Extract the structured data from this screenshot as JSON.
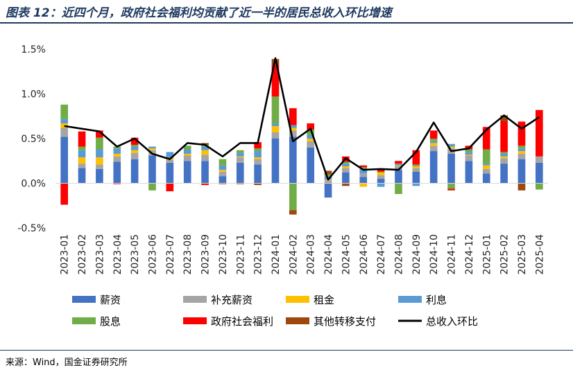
{
  "figure": {
    "title": "图表 12：近四个月，政府社会福利均贡献了近一半的居民总收入环比增速",
    "source": "来源：Wind，国金证券研究所"
  },
  "chart_data": {
    "type": "bar",
    "stacked": true,
    "categories": [
      "2023-01",
      "2023-02",
      "2023-03",
      "2023-04",
      "2023-05",
      "2023-06",
      "2023-07",
      "2023-08",
      "2023-09",
      "2023-10",
      "2023-11",
      "2023-12",
      "2024-01",
      "2024-02",
      "2024-03",
      "2024-04",
      "2024-05",
      "2024-06",
      "2024-07",
      "2024-08",
      "2024-09",
      "2024-10",
      "2024-11",
      "2024-12",
      "2025-01",
      "2025-02",
      "2025-03",
      "2025-04"
    ],
    "y_ticks": [
      "1.5%",
      "1.0%",
      "0.5%",
      "0.0%",
      "-0.5%"
    ],
    "ylim": [
      -0.5,
      1.5
    ],
    "grid": false,
    "legend_position": "bottom",
    "series": [
      {
        "name": "薪资",
        "color": "#4472c4",
        "values": [
          0.52,
          0.17,
          0.16,
          0.24,
          0.27,
          0.31,
          0.23,
          0.25,
          0.25,
          0.08,
          0.23,
          0.21,
          0.5,
          0.52,
          0.4,
          -0.16,
          0.12,
          0.07,
          0.05,
          0.15,
          0.13,
          0.36,
          0.33,
          0.25,
          0.11,
          0.22,
          0.27,
          0.23
        ]
      },
      {
        "name": "补充薪资",
        "color": "#a5a5a5",
        "values": [
          0.1,
          0.05,
          0.05,
          0.06,
          0.07,
          0.06,
          0.03,
          0.06,
          0.07,
          0.05,
          0.06,
          0.06,
          0.07,
          0.07,
          0.07,
          0.03,
          0.05,
          0.04,
          0.04,
          0.04,
          0.04,
          0.06,
          0.06,
          0.06,
          0.05,
          0.06,
          0.06,
          0.07
        ]
      },
      {
        "name": "租金",
        "color": "#ffc000",
        "values": [
          0.05,
          0.07,
          0.08,
          0.03,
          0.03,
          0.02,
          0.02,
          0.02,
          0.05,
          0.02,
          0.01,
          0.02,
          0.07,
          0.03,
          0.03,
          0.01,
          0.02,
          -0.04,
          0.03,
          0.01,
          0.02,
          0.03,
          0.02,
          0.01,
          0.04,
          0.02,
          0.03,
          0.0
        ]
      },
      {
        "name": "利息",
        "color": "#5b9bd5",
        "values": [
          0.05,
          0.08,
          0.09,
          0.06,
          0.04,
          0.02,
          0.07,
          0.05,
          0.04,
          0.05,
          0.04,
          0.07,
          0.03,
          0.03,
          0.04,
          0.04,
          0.03,
          0.05,
          -0.04,
          0.02,
          -0.03,
          0.02,
          0.03,
          0.03,
          0.02,
          0.03,
          0.03,
          0.0
        ]
      },
      {
        "name": "股息",
        "color": "#70ad47",
        "values": [
          0.16,
          0.04,
          0.13,
          0.02,
          0.02,
          -0.08,
          0.0,
          0.04,
          0.02,
          0.07,
          0.03,
          0.03,
          0.3,
          -0.3,
          0.06,
          0.02,
          0.02,
          0.02,
          0.01,
          -0.12,
          0.02,
          0.03,
          -0.06,
          0.03,
          0.16,
          0.02,
          0.03,
          -0.07
        ]
      },
      {
        "name": "政府社会福利",
        "color": "#ff0000",
        "values": [
          -0.24,
          0.17,
          0.08,
          -0.01,
          0.08,
          0.0,
          -0.09,
          0.0,
          -0.02,
          0.0,
          0.0,
          0.07,
          0.35,
          0.19,
          0.07,
          0.0,
          0.06,
          0.02,
          0.03,
          0.03,
          0.16,
          0.09,
          -0.01,
          0.04,
          0.25,
          0.34,
          0.27,
          0.52
        ]
      },
      {
        "name": "其他转移支付",
        "color": "#9e480e",
        "values": [
          0.0,
          0.0,
          0.0,
          0.0,
          0.0,
          0.0,
          0.0,
          0.0,
          0.02,
          -0.01,
          -0.01,
          -0.02,
          0.07,
          -0.05,
          0.0,
          0.04,
          -0.03,
          0.0,
          0.0,
          0.0,
          0.0,
          0.0,
          -0.01,
          0.0,
          0.0,
          0.07,
          -0.08,
          0.0
        ]
      }
    ],
    "line": {
      "name": "总收入环比",
      "color": "#000000",
      "values": [
        0.64,
        0.61,
        0.58,
        0.41,
        0.5,
        0.33,
        0.27,
        0.45,
        0.43,
        0.3,
        0.45,
        0.45,
        1.4,
        0.47,
        0.61,
        0.04,
        0.28,
        0.15,
        0.16,
        0.15,
        0.35,
        0.68,
        0.36,
        0.39,
        0.6,
        0.76,
        0.61,
        0.74
      ]
    }
  }
}
